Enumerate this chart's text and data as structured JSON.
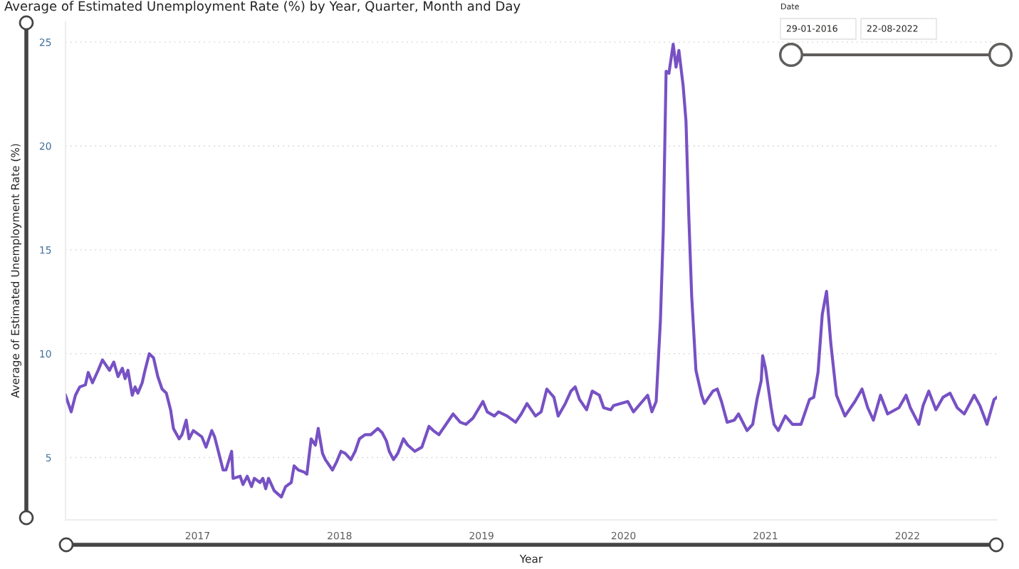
{
  "chart_data": {
    "type": "line",
    "title": "Average of Estimated Unemployment Rate (%) by Year, Quarter, Month and Day",
    "xlabel": "Year",
    "ylabel": "Average of Estimated Unemployment Rate (%)",
    "annotations": [
      "Date",
      "29-01-2016",
      "22-08-2022"
    ],
    "x": [
      2016.07,
      2016.11,
      2016.14,
      2016.17,
      2016.21,
      2016.23,
      2016.26,
      2016.3,
      2016.33,
      2016.38,
      2016.41,
      2016.44,
      2016.47,
      2016.49,
      2016.51,
      2016.54,
      2016.56,
      2016.58,
      2016.61,
      2016.63,
      2016.66,
      2016.69,
      2016.72,
      2016.75,
      2016.78,
      2016.81,
      2016.83,
      2016.87,
      2016.89,
      2016.92,
      2016.94,
      2016.97,
      2017.03,
      2017.06,
      2017.1,
      2017.12,
      2017.18,
      2017.2,
      2017.24,
      2017.25,
      2017.3,
      2017.32,
      2017.35,
      2017.38,
      2017.4,
      2017.44,
      2017.46,
      2017.48,
      2017.5,
      2017.54,
      2017.59,
      2017.62,
      2017.66,
      2017.68,
      2017.71,
      2017.75,
      2017.77,
      2017.8,
      2017.83,
      2017.85,
      2017.88,
      2017.9,
      2017.95,
      2017.98,
      2018.01,
      2018.04,
      2018.08,
      2018.11,
      2018.14,
      2018.18,
      2018.22,
      2018.27,
      2018.3,
      2018.33,
      2018.35,
      2018.38,
      2018.41,
      2018.45,
      2018.48,
      2018.53,
      2018.58,
      2018.63,
      2018.66,
      2018.7,
      2018.77,
      2018.8,
      2018.85,
      2018.89,
      2018.94,
      2019.01,
      2019.04,
      2019.09,
      2019.12,
      2019.18,
      2019.24,
      2019.28,
      2019.32,
      2019.38,
      2019.42,
      2019.46,
      2019.51,
      2019.54,
      2019.59,
      2019.63,
      2019.66,
      2019.69,
      2019.74,
      2019.78,
      2019.83,
      2019.86,
      2019.91,
      2019.93,
      2020.03,
      2020.07,
      2020.17,
      2020.2,
      2020.23,
      2020.26,
      2020.28,
      2020.3,
      2020.32,
      2020.35,
      2020.37,
      2020.39,
      2020.42,
      2020.44,
      2020.46,
      2020.48,
      2020.51,
      2020.55,
      2020.57,
      2020.63,
      2020.66,
      2020.69,
      2020.73,
      2020.78,
      2020.81,
      2020.87,
      2020.91,
      2020.94,
      2020.97,
      2020.98,
      2021.0,
      2021.04,
      2021.06,
      2021.09,
      2021.14,
      2021.19,
      2021.25,
      2021.31,
      2021.34,
      2021.37,
      2021.4,
      2021.43,
      2021.46,
      2021.5,
      2021.56,
      2021.63,
      2021.68,
      2021.72,
      2021.76,
      2021.81,
      2021.86,
      2021.94,
      2021.99,
      2022.02,
      2022.08,
      2022.11,
      2022.15,
      2022.2,
      2022.25,
      2022.3,
      2022.35,
      2022.4,
      2022.47,
      2022.51,
      2022.56,
      2022.61,
      2022.63
    ],
    "series": [
      {
        "color": "#7751c4",
        "values": [
          8.0,
          7.2,
          8.0,
          8.4,
          8.5,
          9.1,
          8.6,
          9.2,
          9.7,
          9.2,
          9.6,
          8.9,
          9.3,
          8.8,
          9.2,
          8.0,
          8.4,
          8.1,
          8.6,
          9.2,
          10.0,
          9.8,
          8.9,
          8.3,
          8.1,
          7.3,
          6.4,
          5.9,
          6.1,
          6.8,
          5.9,
          6.3,
          6.0,
          5.5,
          6.3,
          6.0,
          4.4,
          4.4,
          5.3,
          4.0,
          4.1,
          3.7,
          4.1,
          3.6,
          4.0,
          3.8,
          4.0,
          3.5,
          4.0,
          3.4,
          3.1,
          3.6,
          3.8,
          4.6,
          4.4,
          4.3,
          4.2,
          5.9,
          5.6,
          6.4,
          5.2,
          4.9,
          4.4,
          4.8,
          5.3,
          5.2,
          4.9,
          5.3,
          5.9,
          6.1,
          6.1,
          6.4,
          6.2,
          5.8,
          5.3,
          4.9,
          5.2,
          5.9,
          5.6,
          5.3,
          5.5,
          6.5,
          6.3,
          6.1,
          6.8,
          7.1,
          6.7,
          6.6,
          6.9,
          7.7,
          7.2,
          7.0,
          7.2,
          7.0,
          6.7,
          7.1,
          7.6,
          7.0,
          7.2,
          8.3,
          7.9,
          7.0,
          7.6,
          8.2,
          8.4,
          7.8,
          7.3,
          8.2,
          8.0,
          7.4,
          7.3,
          7.5,
          7.7,
          7.2,
          8.0,
          7.2,
          7.7,
          11.6,
          15.9,
          23.6,
          23.5,
          24.9,
          23.8,
          24.6,
          22.9,
          21.2,
          16.6,
          12.8,
          9.2,
          8.0,
          7.6,
          8.2,
          8.3,
          7.7,
          6.7,
          6.8,
          7.1,
          6.3,
          6.6,
          7.8,
          8.7,
          9.9,
          9.3,
          7.4,
          6.6,
          6.3,
          7.0,
          6.6,
          6.6,
          7.8,
          7.9,
          9.1,
          11.9,
          13.0,
          10.5,
          8.0,
          7.0,
          7.7,
          8.3,
          7.4,
          6.8,
          8.0,
          7.1,
          7.4,
          8.0,
          7.4,
          6.6,
          7.5,
          8.2,
          7.3,
          7.9,
          8.1,
          7.4,
          7.1,
          8.0,
          7.5,
          6.6,
          7.8,
          7.9
        ]
      }
    ],
    "xlim": [
      2016.07,
      2022.63
    ],
    "xticks": [
      2017,
      2018,
      2019,
      2020,
      2021,
      2022
    ],
    "ylim": [
      2,
      26
    ],
    "yticks": [
      5,
      10,
      15,
      20,
      25
    ],
    "grid": "y",
    "legend": false,
    "marker": "none",
    "line_style": "solid"
  }
}
